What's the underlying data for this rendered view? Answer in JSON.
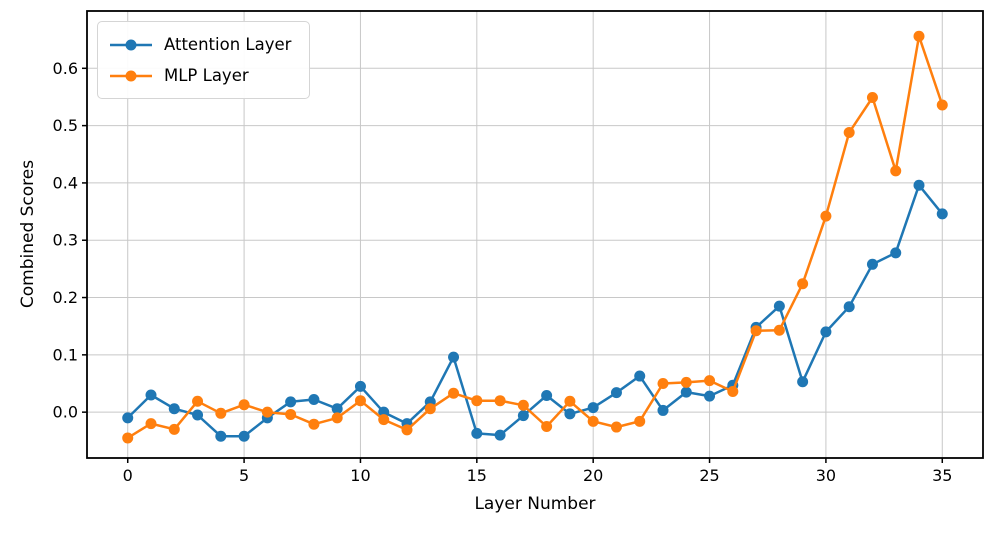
{
  "chart_data": {
    "type": "line",
    "title": "",
    "xlabel": "Layer Number",
    "ylabel": "Combined Scores",
    "x": [
      0,
      1,
      2,
      3,
      4,
      5,
      6,
      7,
      8,
      9,
      10,
      11,
      12,
      13,
      14,
      15,
      16,
      17,
      18,
      19,
      20,
      21,
      22,
      23,
      24,
      25,
      26,
      27,
      28,
      29,
      30,
      31,
      32,
      33,
      34,
      35
    ],
    "series": [
      {
        "name": "Attention Layer",
        "color": "#1f77b4",
        "values": [
          -0.01,
          0.03,
          0.006,
          -0.005,
          -0.042,
          -0.042,
          -0.01,
          0.018,
          0.022,
          0.006,
          0.045,
          0.0,
          -0.02,
          0.018,
          0.096,
          -0.037,
          -0.04,
          -0.006,
          0.029,
          -0.003,
          0.008,
          0.034,
          0.063,
          0.003,
          0.035,
          0.028,
          0.047,
          0.148,
          0.185,
          0.053,
          0.14,
          0.184,
          0.258,
          0.278,
          0.396,
          0.346
        ]
      },
      {
        "name": "MLP Layer",
        "color": "#ff7f0e",
        "values": [
          -0.045,
          -0.02,
          -0.03,
          0.019,
          -0.002,
          0.013,
          0.0,
          -0.004,
          -0.021,
          -0.01,
          0.02,
          -0.013,
          -0.031,
          0.006,
          0.033,
          0.02,
          0.02,
          0.012,
          -0.025,
          0.019,
          -0.016,
          -0.026,
          -0.016,
          0.05,
          0.052,
          0.055,
          0.036,
          0.142,
          0.143,
          0.224,
          0.342,
          0.488,
          0.549,
          0.421,
          0.656,
          0.536
        ]
      }
    ],
    "xlim": [
      -1.75,
      36.75
    ],
    "ylim": [
      -0.08,
      0.7
    ],
    "x_ticks": [
      0,
      5,
      10,
      15,
      20,
      25,
      30,
      35
    ],
    "y_ticks": [
      0.0,
      0.1,
      0.2,
      0.3,
      0.4,
      0.5,
      0.6
    ],
    "grid": true,
    "legend_position": "upper left",
    "marker": "circle",
    "colors": {
      "grid": "#c8c8c8",
      "spine": "#000000",
      "background": "#ffffff"
    }
  }
}
